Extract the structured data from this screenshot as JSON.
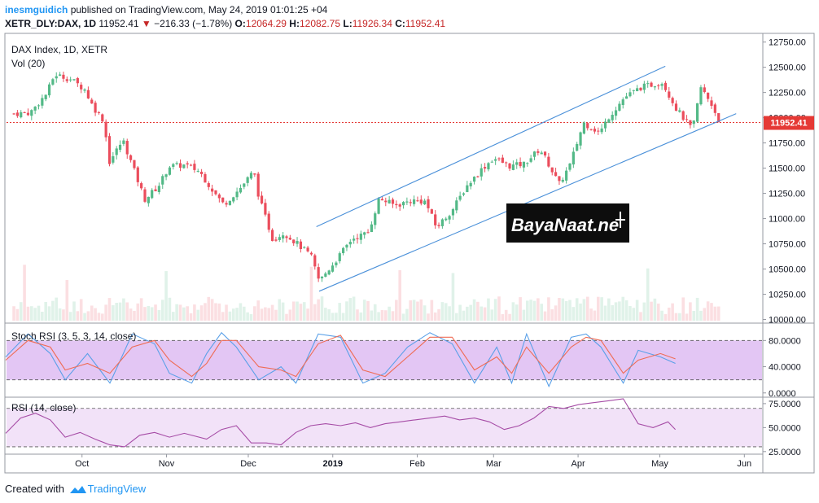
{
  "header": {
    "author": "inesmguidich",
    "published": "published on TradingView.com, May 24, 2019 01:01:25 +04",
    "symbol": "XETR_DLY:DAX, 1D",
    "last": "11952.41",
    "change_arrow": "▼",
    "change": "−216.33 (−1.78%)",
    "o_label": "O:",
    "o_value": "12064.29",
    "h_label": "H:",
    "h_value": "12082.75",
    "l_label": "L:",
    "l_value": "11926.34",
    "c_label": "C:",
    "c_value": "11952.41"
  },
  "footer": {
    "created_with": "Created with",
    "brand": "TradingView",
    "logo_icon": "tradingview-logo-icon"
  },
  "watermark": {
    "text": "BayaNaat.ne",
    "note": "logo with stylised text, reproduced as image"
  },
  "colors": {
    "up": "#53b987",
    "down": "#eb4d5c",
    "channel": "#4a90d9",
    "last_price_bg": "#e53935",
    "stoch_k": "#5aa0e8",
    "stoch_d": "#ef6c55",
    "stoch_band": "#d9b3f0",
    "rsi_line": "#a64ca6",
    "rsi_band": "#f1dff7"
  },
  "chart_data": [
    {
      "type": "candlestick",
      "title": "DAX Index, 1D, XETR",
      "subtitle": "Vol (20)",
      "x_ticks": [
        "Oct",
        "Nov",
        "Dec",
        "2019",
        "Feb",
        "Mar",
        "Apr",
        "May",
        "Jun"
      ],
      "y_ticks": [
        "12750.00",
        "12500.00",
        "12250.00",
        "12000.00",
        "11750.00",
        "11500.00",
        "11250.00",
        "11000.00",
        "10750.00",
        "10500.00",
        "10250.00",
        "10000.00"
      ],
      "ylim": [
        9980,
        12820
      ],
      "last_price_label": "11952.41",
      "last_price": 11952.41,
      "close_path": [
        [
          "2018-09-06",
          12040
        ],
        [
          "2018-09-12",
          12050
        ],
        [
          "2018-09-18",
          12240
        ],
        [
          "2018-09-21",
          12430
        ],
        [
          "2018-09-27",
          12380
        ],
        [
          "2018-10-02",
          12280
        ],
        [
          "2018-10-05",
          12110
        ],
        [
          "2018-10-09",
          11970
        ],
        [
          "2018-10-11",
          11560
        ],
        [
          "2018-10-16",
          11780
        ],
        [
          "2018-10-19",
          11560
        ],
        [
          "2018-10-24",
          11190
        ],
        [
          "2018-10-29",
          11320
        ],
        [
          "2018-11-02",
          11520
        ],
        [
          "2018-11-08",
          11530
        ],
        [
          "2018-11-13",
          11470
        ],
        [
          "2018-11-19",
          11240
        ],
        [
          "2018-11-22",
          11140
        ],
        [
          "2018-11-28",
          11300
        ],
        [
          "2018-12-03",
          11470
        ],
        [
          "2018-12-05",
          11200
        ],
        [
          "2018-12-10",
          10790
        ],
        [
          "2018-12-14",
          10860
        ],
        [
          "2018-12-19",
          10750
        ],
        [
          "2018-12-24",
          10630
        ],
        [
          "2018-12-27",
          10380
        ],
        [
          "2019-01-02",
          10580
        ],
        [
          "2019-01-08",
          10800
        ],
        [
          "2019-01-14",
          10860
        ],
        [
          "2019-01-18",
          11200
        ],
        [
          "2019-01-24",
          11130
        ],
        [
          "2019-01-30",
          11180
        ],
        [
          "2019-02-04",
          11170
        ],
        [
          "2019-02-08",
          10910
        ],
        [
          "2019-02-14",
          11090
        ],
        [
          "2019-02-19",
          11320
        ],
        [
          "2019-02-25",
          11500
        ],
        [
          "2019-03-01",
          11600
        ],
        [
          "2019-03-07",
          11520
        ],
        [
          "2019-03-12",
          11540
        ],
        [
          "2019-03-18",
          11690
        ],
        [
          "2019-03-21",
          11550
        ],
        [
          "2019-03-25",
          11340
        ],
        [
          "2019-03-29",
          11530
        ],
        [
          "2019-04-03",
          11950
        ],
        [
          "2019-04-09",
          11850
        ],
        [
          "2019-04-12",
          12000
        ],
        [
          "2019-04-18",
          12200
        ],
        [
          "2019-04-24",
          12300
        ],
        [
          "2019-04-30",
          12340
        ],
        [
          "2019-05-02",
          12350
        ],
        [
          "2019-05-07",
          12090
        ],
        [
          "2019-05-13",
          11880
        ],
        [
          "2019-05-16",
          12300
        ],
        [
          "2019-05-20",
          12130
        ],
        [
          "2019-05-23",
          11952.41
        ]
      ],
      "channel": {
        "upper": [
          [
            "2018-12-26",
            10920
          ],
          [
            "2019-05-03",
            12510
          ]
        ],
        "lower": [
          [
            "2018-12-27",
            10280
          ],
          [
            "2019-05-29",
            12040
          ]
        ]
      },
      "volume_note": "Vol (20) histogram along the bottom of the price pane, no axis values shown"
    },
    {
      "type": "line",
      "title": "Stoch RSI (3, 5, 3, 14, close)",
      "y_ticks": [
        "80.0000",
        "40.0000",
        "0.0000"
      ],
      "ylim": [
        -4,
        104
      ],
      "band": [
        20,
        80
      ],
      "series": [
        {
          "key": "k",
          "points": [
            [
              0.0,
              55
            ],
            [
              0.03,
              90
            ],
            [
              0.06,
              60
            ],
            [
              0.08,
              20
            ],
            [
              0.11,
              60
            ],
            [
              0.14,
              15
            ],
            [
              0.17,
              90
            ],
            [
              0.2,
              75
            ],
            [
              0.22,
              30
            ],
            [
              0.25,
              15
            ],
            [
              0.27,
              60
            ],
            [
              0.29,
              92
            ],
            [
              0.31,
              70
            ],
            [
              0.34,
              20
            ],
            [
              0.37,
              40
            ],
            [
              0.39,
              15
            ],
            [
              0.42,
              90
            ],
            [
              0.45,
              85
            ],
            [
              0.48,
              15
            ],
            [
              0.51,
              30
            ],
            [
              0.54,
              70
            ],
            [
              0.57,
              92
            ],
            [
              0.6,
              75
            ],
            [
              0.63,
              15
            ],
            [
              0.66,
              70
            ],
            [
              0.68,
              15
            ],
            [
              0.7,
              90
            ],
            [
              0.73,
              10
            ],
            [
              0.76,
              85
            ],
            [
              0.78,
              90
            ],
            [
              0.8,
              70
            ],
            [
              0.83,
              15
            ],
            [
              0.85,
              65
            ],
            [
              0.88,
              55
            ],
            [
              0.9,
              45
            ]
          ]
        },
        {
          "key": "d",
          "points": [
            [
              0.0,
              50
            ],
            [
              0.03,
              80
            ],
            [
              0.06,
              70
            ],
            [
              0.08,
              35
            ],
            [
              0.11,
              45
            ],
            [
              0.14,
              30
            ],
            [
              0.17,
              70
            ],
            [
              0.2,
              80
            ],
            [
              0.22,
              50
            ],
            [
              0.25,
              25
            ],
            [
              0.27,
              45
            ],
            [
              0.29,
              80
            ],
            [
              0.31,
              80
            ],
            [
              0.34,
              40
            ],
            [
              0.37,
              35
            ],
            [
              0.39,
              25
            ],
            [
              0.42,
              75
            ],
            [
              0.45,
              88
            ],
            [
              0.48,
              35
            ],
            [
              0.51,
              25
            ],
            [
              0.54,
              55
            ],
            [
              0.57,
              85
            ],
            [
              0.6,
              85
            ],
            [
              0.63,
              35
            ],
            [
              0.66,
              55
            ],
            [
              0.68,
              30
            ],
            [
              0.7,
              70
            ],
            [
              0.73,
              30
            ],
            [
              0.76,
              70
            ],
            [
              0.78,
              85
            ],
            [
              0.8,
              80
            ],
            [
              0.83,
              30
            ],
            [
              0.85,
              50
            ],
            [
              0.88,
              60
            ],
            [
              0.9,
              52
            ]
          ]
        }
      ]
    },
    {
      "type": "line",
      "title": "RSI (14, close)",
      "y_ticks": [
        "75.0000",
        "50.0000",
        "25.0000"
      ],
      "ylim": [
        24,
        80
      ],
      "band": [
        30,
        70
      ],
      "series": [
        {
          "key": "rsi",
          "points": [
            [
              0.0,
              44
            ],
            [
              0.02,
              60
            ],
            [
              0.04,
              65
            ],
            [
              0.06,
              58
            ],
            [
              0.08,
              40
            ],
            [
              0.1,
              45
            ],
            [
              0.12,
              38
            ],
            [
              0.14,
              32
            ],
            [
              0.16,
              30
            ],
            [
              0.18,
              42
            ],
            [
              0.2,
              45
            ],
            [
              0.22,
              40
            ],
            [
              0.24,
              44
            ],
            [
              0.27,
              38
            ],
            [
              0.29,
              48
            ],
            [
              0.31,
              52
            ],
            [
              0.33,
              34
            ],
            [
              0.35,
              34
            ],
            [
              0.37,
              32
            ],
            [
              0.39,
              45
            ],
            [
              0.41,
              52
            ],
            [
              0.43,
              54
            ],
            [
              0.45,
              52
            ],
            [
              0.47,
              55
            ],
            [
              0.49,
              50
            ],
            [
              0.51,
              54
            ],
            [
              0.53,
              56
            ],
            [
              0.55,
              58
            ],
            [
              0.57,
              60
            ],
            [
              0.59,
              62
            ],
            [
              0.61,
              58
            ],
            [
              0.63,
              60
            ],
            [
              0.65,
              56
            ],
            [
              0.67,
              48
            ],
            [
              0.69,
              52
            ],
            [
              0.71,
              60
            ],
            [
              0.73,
              72
            ],
            [
              0.75,
              70
            ],
            [
              0.77,
              74
            ],
            [
              0.79,
              76
            ],
            [
              0.81,
              78
            ],
            [
              0.83,
              80
            ],
            [
              0.85,
              54
            ],
            [
              0.87,
              50
            ],
            [
              0.89,
              56
            ],
            [
              0.9,
              48
            ]
          ]
        }
      ]
    }
  ]
}
